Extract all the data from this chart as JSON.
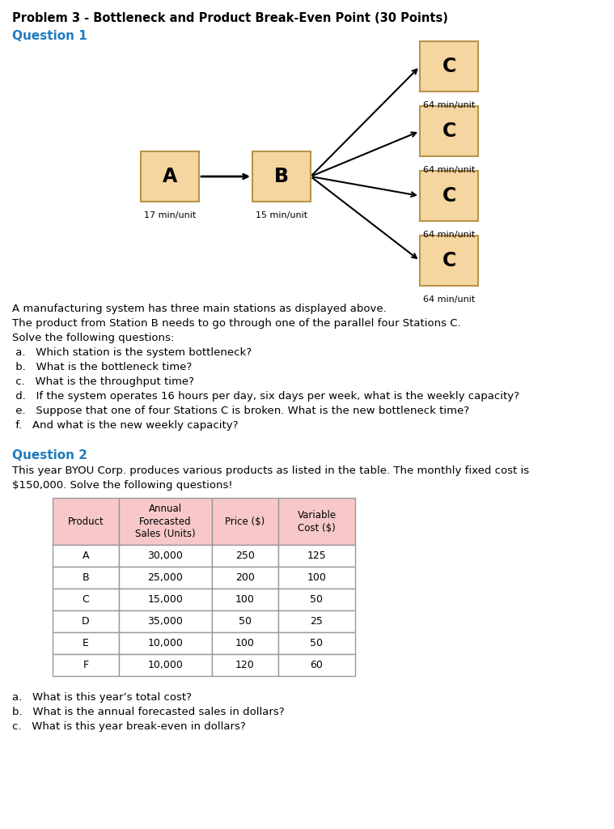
{
  "title": "Problem 3 - Bottleneck and Product Break-Even Point (30 Points)",
  "title_color": "#000000",
  "q1_label": "Question 1",
  "q1_color": "#1e7bbf",
  "q2_label": "Question 2",
  "q2_color": "#1e7bbf",
  "box_fill": "#f5d5a0",
  "box_edge": "#b8944a",
  "box_A_label": "A",
  "box_B_label": "B",
  "box_C_label": "C",
  "box_A_time": "17 min/unit",
  "box_B_time": "15 min/unit",
  "box_C_time": "64 min/unit",
  "q1_text_lines": [
    "A manufacturing system has three main stations as displayed above.",
    "The product from Station B needs to go through one of the parallel four Stations C.",
    "Solve the following questions:",
    " a.   Which station is the system bottleneck?",
    " b.   What is the bottleneck time?",
    " c.   What is the throughput time?",
    " d.   If the system operates 16 hours per day, six days per week, what is the weekly capacity?",
    " e.   Suppose that one of four Stations C is broken. What is the new bottleneck time?",
    " f.   And what is the new weekly capacity?"
  ],
  "q2_intro_line1": "This year BYOU Corp. produces various products as listed in the table. The monthly fixed cost is",
  "q2_intro_line2": "$150,000. Solve the following questions!",
  "table_headers": [
    "Product",
    "Annual\nForecasted\nSales (Units)",
    "Price ($)",
    "Variable\nCost ($)"
  ],
  "table_data": [
    [
      "A",
      "30,000",
      "250",
      "125"
    ],
    [
      "B",
      "25,000",
      "200",
      "100"
    ],
    [
      "C",
      "15,000",
      "100",
      "50"
    ],
    [
      "D",
      "35,000",
      "50",
      "25"
    ],
    [
      "E",
      "10,000",
      "100",
      "50"
    ],
    [
      "F",
      "10,000",
      "120",
      "60"
    ]
  ],
  "q2_questions": [
    "a.   What is this year’s total cost?",
    "b.   What is the annual forecasted sales in dollars?",
    "c.   What is this year break-even in dollars?"
  ],
  "header_bg": "#f8c8c8",
  "bg_color": "#ffffff",
  "table_border": "#999999"
}
